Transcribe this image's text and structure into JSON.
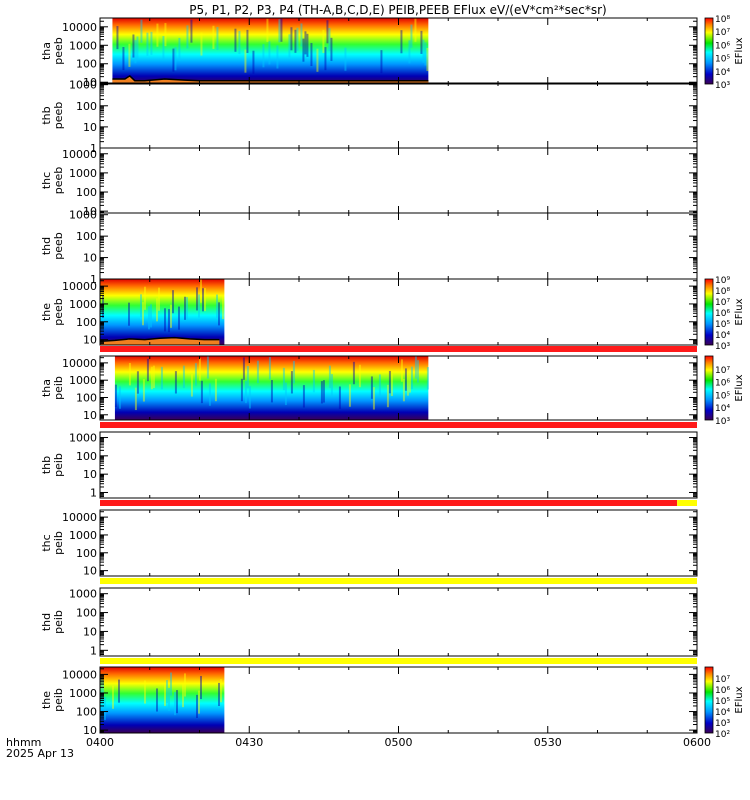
{
  "title": "P5, P1, P2, P3, P4 (TH-A,B,C,D,E) PEIB,PEEB EFlux eV/(eV*cm²*sec*sr)",
  "time_axis": {
    "label_line1": "hhmm",
    "label_line2": "2025 Apr 13",
    "ticks": [
      "0400",
      "0430",
      "0500",
      "0530",
      "0600"
    ],
    "tick_values_min": [
      0,
      30,
      60,
      90,
      120
    ],
    "range_min": [
      0,
      120
    ]
  },
  "colorbar_label": "EFlux",
  "status_bar_colors": {
    "red": "#ff1a1a",
    "yellow": "#ffff00"
  },
  "chart_data": [
    {
      "type": "heatmap",
      "probe": "tha",
      "product": "peeb",
      "ylabel": [
        "tha",
        "peeb"
      ],
      "yscale": "log",
      "ylim": [
        8,
        30000
      ],
      "yticks": [
        "10",
        "100",
        "1000",
        "10000"
      ],
      "data_range_min": [
        2.5,
        66
      ],
      "colorbar": {
        "log_range": [
          3,
          8
        ],
        "ticks": [
          "10⁸",
          "10⁷",
          "10⁶",
          "10⁵",
          "10⁴",
          "10³"
        ],
        "tick_exps": [
          8,
          7,
          6,
          5,
          4,
          3
        ]
      },
      "spacecraft_potential_eV": [
        [
          2.5,
          15
        ],
        [
          5,
          15
        ],
        [
          6,
          22
        ],
        [
          7,
          12
        ],
        [
          9,
          12
        ],
        [
          13,
          15
        ],
        [
          17,
          13
        ],
        [
          20,
          12
        ],
        [
          30,
          12
        ],
        [
          50,
          12
        ],
        [
          62,
          12
        ],
        [
          66,
          12
        ]
      ],
      "status_bar": null
    },
    {
      "type": "heatmap",
      "probe": "thb",
      "product": "peeb",
      "ylabel": [
        "thb",
        "peeb"
      ],
      "yscale": "log",
      "ylim": [
        1,
        1200
      ],
      "yticks": [
        "1",
        "10",
        "100",
        "1000"
      ],
      "status_bar": null
    },
    {
      "type": "heatmap",
      "probe": "thc",
      "product": "peeb",
      "ylabel": [
        "thc",
        "peeb"
      ],
      "yscale": "log",
      "ylim": [
        8,
        20000
      ],
      "yticks": [
        "10",
        "100",
        "1000",
        "10000"
      ],
      "status_bar": null
    },
    {
      "type": "heatmap",
      "probe": "thd",
      "product": "peeb",
      "ylabel": [
        "thd",
        "peeb"
      ],
      "yscale": "log",
      "ylim": [
        1,
        1200
      ],
      "yticks": [
        "1",
        "10",
        "100",
        "1000"
      ],
      "status_bar": null
    },
    {
      "type": "heatmap",
      "probe": "the",
      "product": "peeb",
      "ylabel": [
        "the",
        "peeb"
      ],
      "yscale": "log",
      "ylim": [
        5,
        25000
      ],
      "yticks": [
        "10",
        "100",
        "1000",
        "10000"
      ],
      "data_range_min": [
        0,
        25
      ],
      "colorbar": {
        "log_range": [
          3,
          9
        ],
        "ticks": [
          "10⁹",
          "10⁸",
          "10⁷",
          "10⁶",
          "10⁵",
          "10⁴",
          "10³"
        ],
        "tick_exps": [
          9,
          8,
          7,
          6,
          5,
          4,
          3
        ]
      },
      "spacecraft_potential_eV": [
        [
          0,
          8
        ],
        [
          3,
          9
        ],
        [
          6,
          11
        ],
        [
          9,
          10
        ],
        [
          12,
          12
        ],
        [
          15,
          13
        ],
        [
          18,
          11
        ],
        [
          21,
          10
        ],
        [
          24,
          10
        ]
      ],
      "status_bar": {
        "color": "red",
        "range_min": [
          0,
          120
        ]
      }
    },
    {
      "type": "heatmap",
      "probe": "tha",
      "product": "peib",
      "ylabel": [
        "tha",
        "peib"
      ],
      "yscale": "log",
      "ylim": [
        5,
        25000
      ],
      "yticks": [
        "10",
        "100",
        "1000",
        "10000"
      ],
      "data_range_min": [
        3,
        66
      ],
      "colorbar": {
        "log_range": [
          3,
          8
        ],
        "ticks": [
          "10⁷",
          "10⁶",
          "10⁵",
          "10⁴",
          "10³"
        ],
        "tick_exps": [
          7,
          6,
          5,
          4,
          3
        ]
      },
      "status_bar": {
        "color": "red",
        "range_min": [
          0,
          120
        ]
      }
    },
    {
      "type": "heatmap",
      "probe": "thb",
      "product": "peib",
      "ylabel": [
        "thb",
        "peib"
      ],
      "yscale": "log",
      "ylim": [
        0.5,
        2000
      ],
      "yticks": [
        "1",
        "10",
        "100",
        "1000"
      ],
      "status_bar": {
        "color": "red",
        "range_min": [
          0,
          116
        ],
        "tail_color": "yellow"
      }
    },
    {
      "type": "heatmap",
      "probe": "thc",
      "product": "peib",
      "ylabel": [
        "thc",
        "peib"
      ],
      "yscale": "log",
      "ylim": [
        5,
        25000
      ],
      "yticks": [
        "10",
        "100",
        "1000",
        "10000"
      ],
      "status_bar": {
        "color": "yellow",
        "range_min": [
          0,
          120
        ]
      }
    },
    {
      "type": "heatmap",
      "probe": "thd",
      "product": "peib",
      "ylabel": [
        "thd",
        "peib"
      ],
      "yscale": "log",
      "ylim": [
        0.5,
        2000
      ],
      "yticks": [
        "1",
        "10",
        "100",
        "1000"
      ],
      "status_bar": {
        "color": "yellow",
        "range_min": [
          0,
          120
        ]
      }
    },
    {
      "type": "heatmap",
      "probe": "the",
      "product": "peib",
      "ylabel": [
        "the",
        "peib"
      ],
      "yscale": "log",
      "ylim": [
        7,
        25000
      ],
      "yticks": [
        "10",
        "100",
        "1000",
        "10000"
      ],
      "data_range_min": [
        0,
        25
      ],
      "colorbar": {
        "log_range": [
          2,
          8
        ],
        "ticks": [
          "10⁷",
          "10⁶",
          "10⁵",
          "10⁴",
          "10³",
          "10²"
        ],
        "tick_exps": [
          7,
          6,
          5,
          4,
          3,
          2
        ]
      },
      "status_bar": {
        "color": "red",
        "range_min": [
          0,
          120
        ]
      }
    }
  ]
}
